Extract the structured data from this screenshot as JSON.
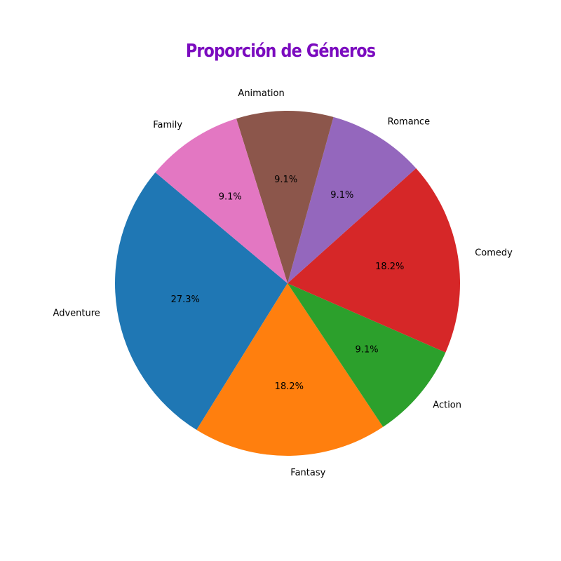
{
  "chart_data": {
    "type": "pie",
    "title": "Proporción de Géneros",
    "title_color": "#7b0bbf",
    "categories": [
      "Adventure",
      "Fantasy",
      "Action",
      "Comedy",
      "Romance",
      "Animation",
      "Family"
    ],
    "values": [
      27.3,
      18.2,
      9.1,
      18.2,
      9.1,
      9.1,
      9.1
    ],
    "percent_labels": [
      "27.3%",
      "18.2%",
      "9.1%",
      "18.2%",
      "9.1%",
      "9.1%",
      "9.1%"
    ],
    "colors": [
      "#1f77b4",
      "#ff7f0e",
      "#2ca02c",
      "#d62728",
      "#9467bd",
      "#8c564b",
      "#e377c2"
    ],
    "start_angle_deg": 140,
    "direction": "counterclockwise",
    "legend": "none"
  }
}
